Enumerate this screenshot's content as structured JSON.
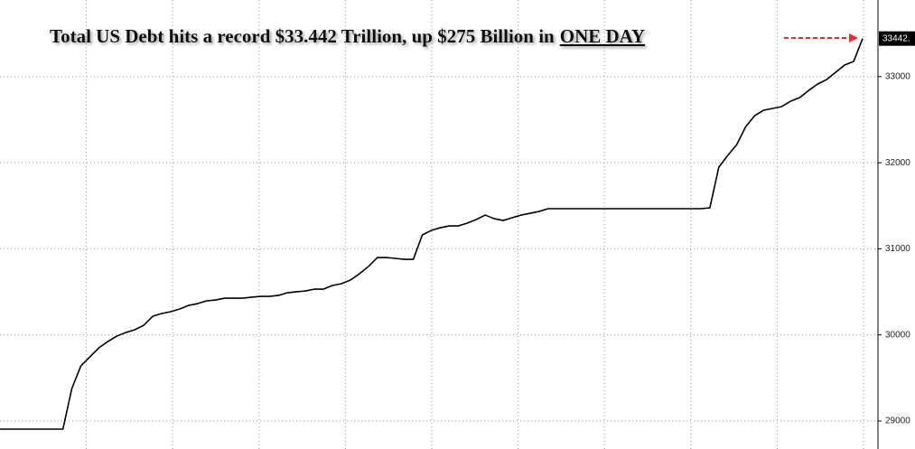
{
  "chart_data": {
    "type": "line",
    "title": "Total US Debt hits a record $33.442 Trillion, up $275 Billion in",
    "title_emphasis": "ONE DAY",
    "values": [
      28906,
      28906,
      28906,
      28906,
      28906,
      28906,
      28906,
      28906,
      29378,
      29640,
      29745,
      29850,
      29923,
      29986,
      30028,
      30060,
      30112,
      30217,
      30249,
      30270,
      30301,
      30343,
      30364,
      30396,
      30406,
      30427,
      30427,
      30427,
      30438,
      30448,
      30448,
      30459,
      30490,
      30501,
      30511,
      30532,
      30532,
      30574,
      30595,
      30637,
      30710,
      30794,
      30899,
      30899,
      30889,
      30878,
      30878,
      31162,
      31214,
      31245,
      31266,
      31266,
      31298,
      31340,
      31392,
      31350,
      31329,
      31361,
      31392,
      31413,
      31434,
      31466,
      31466,
      31466,
      31466,
      31466,
      31466,
      31466,
      31466,
      31466,
      31466,
      31466,
      31466,
      31466,
      31466,
      31466,
      31466,
      31466,
      31466,
      31476,
      31949,
      32085,
      32211,
      32421,
      32547,
      32610,
      32631,
      32652,
      32715,
      32757,
      32840,
      32914,
      32966,
      33050,
      33134,
      33176,
      33442
    ],
    "value_labels": [
      null,
      null,
      null,
      null,
      null,
      null,
      null,
      null,
      null,
      null,
      null,
      null,
      null,
      null,
      null,
      null,
      null,
      null,
      null,
      null,
      null,
      null,
      null,
      null,
      null,
      null,
      null,
      null,
      null,
      null,
      null,
      null,
      null,
      null,
      null,
      null,
      null,
      null,
      null,
      null,
      null,
      null,
      null,
      null,
      null,
      null,
      null,
      null,
      null,
      null,
      null,
      null,
      null,
      null,
      null,
      null,
      null,
      null,
      null,
      null,
      null,
      null,
      null,
      null,
      null,
      null,
      null,
      null,
      null,
      null,
      null,
      null,
      null,
      null,
      null,
      null,
      null,
      null,
      null,
      null,
      null,
      null,
      null,
      null,
      null,
      null,
      null,
      null,
      null,
      null,
      null,
      null,
      null,
      null,
      null,
      null,
      "33442."
    ],
    "color": "#000000",
    "ylim": [
      28675,
      33890
    ],
    "yticks": [
      29000,
      30000,
      31000,
      32000,
      33000
    ],
    "grid": true
  }
}
